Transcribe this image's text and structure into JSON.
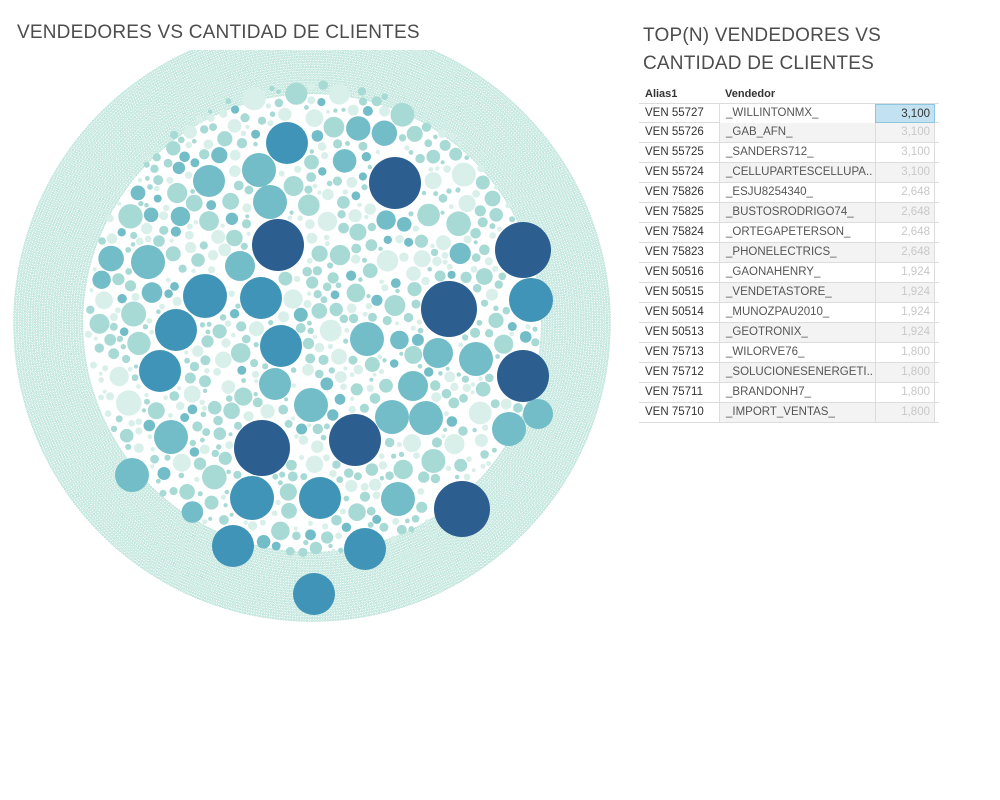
{
  "chart_data": [
    {
      "type": "bubble",
      "title": "VENDEDORES VS CANTIDAD DE CLIENTES",
      "size_measure": "Cantidad de clientes",
      "color_scale": [
        "#d9f0ea",
        "#a8dad5",
        "#73bdc9",
        "#3f94b7",
        "#2c5f8f"
      ],
      "bubble_count_approx": 3500,
      "largest_bubbles": 8,
      "grid": false,
      "legend": "none"
    },
    {
      "type": "table",
      "title": "TOP(N) VENDEDORES VS CANTIDAD DE CLIENTES",
      "columns": [
        "Alias1",
        "Vendedor",
        ""
      ],
      "rows": [
        {
          "alias": "VEN 55727",
          "vendedor": "_WILLINTONMX_",
          "value": "3,100",
          "selected": true
        },
        {
          "alias": "VEN 55726",
          "vendedor": "_GAB_AFN_",
          "value": "3,100"
        },
        {
          "alias": "VEN 55725",
          "vendedor": "_SANDERS712_",
          "value": "3,100"
        },
        {
          "alias": "VEN 55724",
          "vendedor": "_CELLUPARTESCELLUPA..",
          "value": "3,100"
        },
        {
          "alias": "VEN 75826",
          "vendedor": "_ESJU8254340_",
          "value": "2,648"
        },
        {
          "alias": "VEN 75825",
          "vendedor": "_BUSTOSRODRIGO74_",
          "value": "2,648"
        },
        {
          "alias": "VEN 75824",
          "vendedor": "_ORTEGAPETERSON_",
          "value": "2,648"
        },
        {
          "alias": "VEN 75823",
          "vendedor": "_PHONELECTRICS_",
          "value": "2,648"
        },
        {
          "alias": "VEN 50516",
          "vendedor": "_GAONAHENRY_",
          "value": "1,924"
        },
        {
          "alias": "VEN 50515",
          "vendedor": "_VENDETASTORE_",
          "value": "1,924"
        },
        {
          "alias": "VEN 50514",
          "vendedor": "_MUNOZPAU2010_",
          "value": "1,924"
        },
        {
          "alias": "VEN 50513",
          "vendedor": "_GEOTRONIX_",
          "value": "1,924"
        },
        {
          "alias": "VEN 75713",
          "vendedor": "_WILORVE76_",
          "value": "1,800"
        },
        {
          "alias": "VEN 75712",
          "vendedor": "_SOLUCIONESENERGETI..",
          "value": "1,800"
        },
        {
          "alias": "VEN 75711",
          "vendedor": "_BRANDONH7_",
          "value": "1,800"
        },
        {
          "alias": "VEN 75710",
          "vendedor": "_IMPORT_VENTAS_",
          "value": "1,800"
        }
      ]
    }
  ],
  "left_title": "VENDEDORES VS CANTIDAD DE CLIENTES",
  "right_title": "TOP(N) VENDEDORES VS CANTIDAD DE CLIENTES",
  "table_headers": {
    "alias": "Alias1",
    "vendedor": "Vendedor"
  }
}
